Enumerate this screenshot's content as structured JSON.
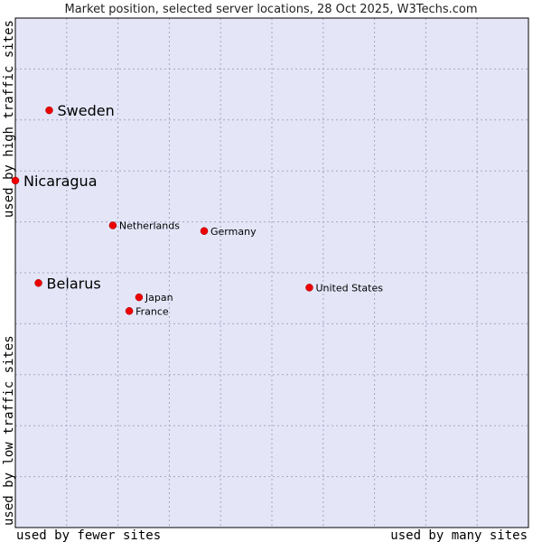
{
  "chart_data": {
    "type": "scatter",
    "title": "Market position, selected server locations, 28 Oct 2025, W3Techs.com",
    "xlabel_left": "used by fewer sites",
    "xlabel_right": "used by many sites",
    "ylabel_top": "used by high traffic sites",
    "ylabel_bottom": "used by low traffic sites",
    "xlim": [
      0,
      100
    ],
    "ylim": [
      0,
      100
    ],
    "grid": true,
    "points": [
      {
        "name": "Sweden",
        "x": 6.6,
        "y": 81.9,
        "emphasis": true
      },
      {
        "name": "Nicaragua",
        "x": 0.0,
        "y": 68.1,
        "emphasis": true
      },
      {
        "name": "Netherlands",
        "x": 19.0,
        "y": 59.3,
        "emphasis": false
      },
      {
        "name": "Germany",
        "x": 36.8,
        "y": 58.2,
        "emphasis": false
      },
      {
        "name": "Belarus",
        "x": 4.5,
        "y": 48.0,
        "emphasis": true
      },
      {
        "name": "United States",
        "x": 57.3,
        "y": 47.1,
        "emphasis": false
      },
      {
        "name": "Japan",
        "x": 24.1,
        "y": 45.2,
        "emphasis": false
      },
      {
        "name": "France",
        "x": 22.2,
        "y": 42.5,
        "emphasis": false
      }
    ]
  },
  "colors": {
    "plot_bg": "#e4e6f8",
    "grid": "#a6a6c0",
    "frame": "#000000",
    "point": "#ee0000"
  }
}
